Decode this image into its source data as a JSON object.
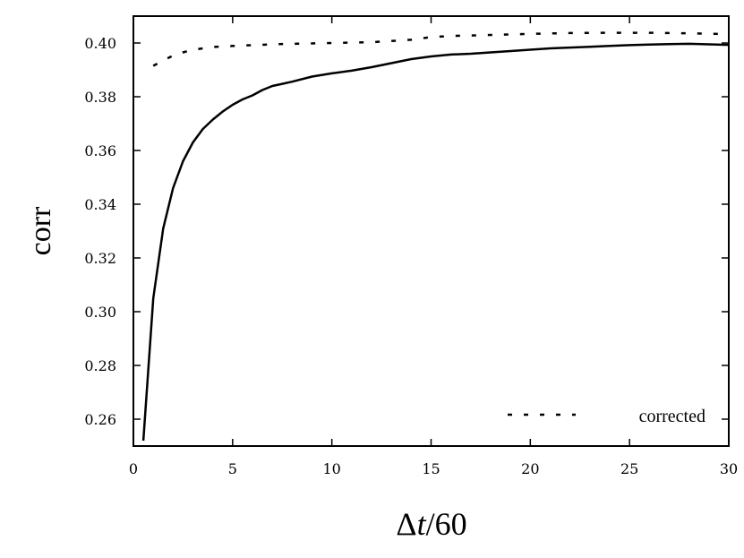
{
  "chart_data": {
    "type": "line",
    "title": "",
    "xlabel": "Δt/60",
    "xlabel_parts": {
      "delta": "Δ",
      "var": "t",
      "rest": "/60"
    },
    "ylabel": "corr",
    "xlim": [
      0,
      30
    ],
    "ylim": [
      0.25,
      0.41
    ],
    "xticks": [
      0,
      5,
      10,
      15,
      20,
      25,
      30
    ],
    "xtick_labels": [
      "0",
      "5",
      "10",
      "15",
      "20",
      "25",
      "30"
    ],
    "yticks": [
      0.26,
      0.28,
      0.3,
      0.32,
      0.34,
      0.36,
      0.38,
      0.4
    ],
    "ytick_labels": [
      "0.26",
      "0.28",
      "0.30",
      "0.32",
      "0.34",
      "0.36",
      "0.38",
      "0.40"
    ],
    "grid": false,
    "legend_position": "bottom-right",
    "series": [
      {
        "style": "solid",
        "color": "#000000",
        "x": [
          0.5,
          1,
          1.5,
          2,
          2.5,
          3,
          3.5,
          4,
          4.5,
          5,
          5.5,
          6,
          6.5,
          7,
          7.5,
          8,
          9,
          10,
          11,
          12,
          13,
          14,
          15,
          16,
          17,
          18,
          19,
          20,
          21,
          22,
          23,
          24,
          25,
          26,
          27,
          28,
          29,
          30
        ],
        "y": [
          0.252,
          0.305,
          0.331,
          0.346,
          0.356,
          0.363,
          0.368,
          0.3715,
          0.3745,
          0.377,
          0.379,
          0.3805,
          0.3825,
          0.384,
          0.3848,
          0.3856,
          0.3875,
          0.3887,
          0.3897,
          0.391,
          0.3925,
          0.394,
          0.395,
          0.3957,
          0.396,
          0.3965,
          0.397,
          0.3975,
          0.398,
          0.3983,
          0.3986,
          0.3989,
          0.3992,
          0.3994,
          0.3996,
          0.3997,
          0.3995,
          0.3993
        ]
      },
      {
        "name": "corrected",
        "style": "dotted",
        "color": "#000000",
        "x": [
          1,
          1.5,
          2,
          2.5,
          3,
          4,
          5,
          6,
          7,
          8,
          10,
          12,
          14,
          15,
          16,
          18,
          20,
          22,
          24,
          26,
          28,
          30
        ],
        "y": [
          0.3915,
          0.3935,
          0.3953,
          0.3965,
          0.3975,
          0.3985,
          0.3989,
          0.3992,
          0.3995,
          0.3997,
          0.4,
          0.4003,
          0.4012,
          0.4022,
          0.4026,
          0.403,
          0.4034,
          0.4037,
          0.4038,
          0.4038,
          0.4036,
          0.4033
        ]
      }
    ]
  }
}
